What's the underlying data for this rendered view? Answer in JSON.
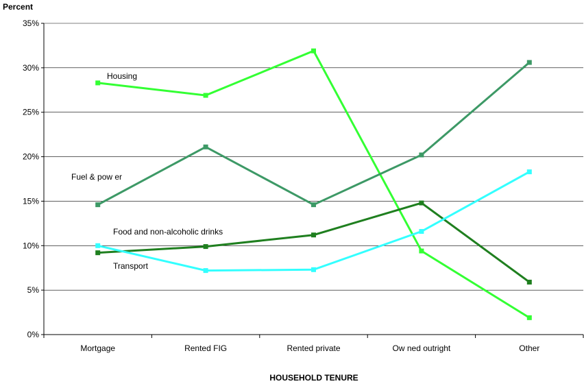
{
  "chart_data": {
    "type": "line",
    "title": "",
    "ylabel": "Percent",
    "xlabel": "HOUSEHOLD TENURE",
    "categories": [
      "Mortgage",
      "Rented FIG",
      "Rented private",
      "Ow ned outright",
      "Other"
    ],
    "ylim": [
      0,
      35
    ],
    "yticks": [
      0,
      5,
      10,
      15,
      20,
      25,
      30,
      35
    ],
    "ytick_labels": [
      "0%",
      "5%",
      "10%",
      "15%",
      "20%",
      "25%",
      "30%",
      "35%"
    ],
    "grid": "horizontal",
    "legend": "none (inline labels)",
    "series": [
      {
        "name": "Housing",
        "color": "#33ff33",
        "values": [
          28.3,
          26.9,
          31.9,
          9.4,
          1.9
        ]
      },
      {
        "name": "Fuel & pow er",
        "color": "#3d9966",
        "values": [
          14.6,
          21.1,
          14.6,
          20.2,
          30.6
        ]
      },
      {
        "name": "Food and non-alcoholic drinks",
        "color": "#1f7f1f",
        "values": [
          9.2,
          9.9,
          11.2,
          14.8,
          5.9
        ]
      },
      {
        "name": "Transport",
        "color": "#33ffff",
        "values": [
          10.0,
          7.2,
          7.3,
          11.6,
          18.3
        ]
      }
    ]
  }
}
